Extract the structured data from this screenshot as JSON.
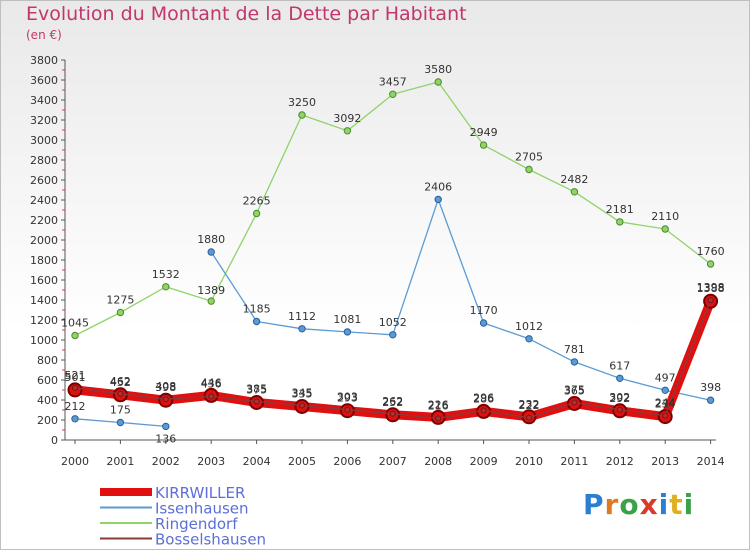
{
  "header": {
    "title": "Evolution du Montant de la Dette par Habitant",
    "subtitle": "(en €)"
  },
  "logo": {
    "text": "Proxiti"
  },
  "chart_data": {
    "type": "line",
    "title": "Evolution du Montant de la Dette par Habitant",
    "subtitle": "(en €)",
    "x": [
      "2000",
      "2001",
      "2002",
      "2003",
      "2004",
      "2005",
      "2006",
      "2007",
      "2008",
      "2009",
      "2010",
      "2011",
      "2012",
      "2013",
      "2014"
    ],
    "ylim": [
      0,
      3800
    ],
    "yticks": [
      0,
      200,
      400,
      600,
      800,
      1000,
      1200,
      1400,
      1600,
      1800,
      2000,
      2200,
      2400,
      2600,
      2800,
      3000,
      3200,
      3400,
      3600,
      3800
    ],
    "grid": false,
    "legend": "bottom-left",
    "series": [
      {
        "name": "KIRRWILLER",
        "color": "#e01010",
        "values": [
          501,
          452,
          398,
          446,
          375,
          335,
          293,
          252,
          226,
          286,
          232,
          365,
          292,
          234,
          1388
        ]
      },
      {
        "name": "Issenhausen",
        "color": "#5b9bd5",
        "values": [
          212,
          175,
          136,
          1880,
          1185,
          1112,
          1081,
          1052,
          2406,
          1170,
          1012,
          781,
          617,
          497,
          398
        ]
      },
      {
        "name": "Ringendorf",
        "color": "#8fd36a",
        "values": [
          1045,
          1275,
          1532,
          1389,
          2265,
          3250,
          3092,
          3457,
          3580,
          2949,
          2705,
          2482,
          2181,
          2110,
          1760
        ]
      },
      {
        "name": "Bosselshausen",
        "color": "#8b3a3a",
        "values": [
          521,
          462,
          408,
          436,
          385,
          345,
          303,
          262,
          216,
          296,
          222,
          375,
          302,
          244,
          1398
        ]
      }
    ]
  }
}
